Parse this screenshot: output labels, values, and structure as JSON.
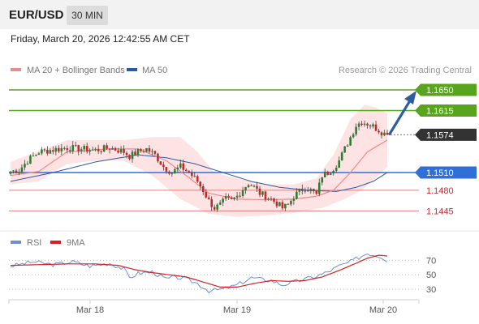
{
  "header": {
    "pair": "EUR/USD",
    "timeframe": "30 MIN",
    "datetime": "Friday, March 20, 2026 12:42:55 AM CET"
  },
  "legend": {
    "ma20": "MA 20 + Bollinger Bands",
    "ma50": "MA 50",
    "credit": "Research © 2026 Trading Central",
    "rsi": "RSI",
    "rsi_ma": "9MA"
  },
  "colors": {
    "ma20": "#f08a8a",
    "bollinger_fill": "#fde3e3",
    "ma50": "#2a5aa0",
    "resistance": "#58a41c",
    "pivot": "#2f6fd6",
    "support": "#e08080",
    "arrow": "#2e5d9e",
    "candle_up": "#2e7d32",
    "candle_down": "#c62828",
    "current": "#333333",
    "rsi": "#6a8fd8",
    "rsi_ma": "#d62020"
  },
  "chart_data": [
    {
      "type": "candlestick",
      "x_ticks": [
        "Mar 18",
        "Mar 19",
        "Mar 20"
      ],
      "ylim": [
        1.1425,
        1.1665
      ],
      "levels": [
        {
          "value": 1.165,
          "label": "1.1650",
          "kind": "resistance"
        },
        {
          "value": 1.1615,
          "label": "1.1615",
          "kind": "resistance"
        },
        {
          "value": 1.1574,
          "label": "1.1574",
          "kind": "current"
        },
        {
          "value": 1.151,
          "label": "1.1510",
          "kind": "pivot"
        },
        {
          "value": 1.148,
          "label": "1.1480",
          "kind": "support"
        },
        {
          "value": 1.1445,
          "label": "1.1445",
          "kind": "support"
        }
      ],
      "candle_anchors": [
        [
          0,
          1.1512
        ],
        [
          3,
          1.1514
        ],
        [
          6,
          1.153
        ],
        [
          10,
          1.1545
        ],
        [
          14,
          1.1548
        ],
        [
          20,
          1.1552
        ],
        [
          25,
          1.155
        ],
        [
          30,
          1.1548
        ],
        [
          35,
          1.1552
        ],
        [
          38,
          1.1548
        ],
        [
          40,
          1.1545
        ],
        [
          42,
          1.1538
        ],
        [
          45,
          1.1545
        ],
        [
          48,
          1.155
        ],
        [
          51,
          1.154
        ],
        [
          54,
          1.152
        ],
        [
          57,
          1.151
        ],
        [
          60,
          1.152
        ],
        [
          63,
          1.151
        ],
        [
          66,
          1.1495
        ],
        [
          68,
          1.148
        ],
        [
          70,
          1.1462
        ],
        [
          72,
          1.145
        ],
        [
          74,
          1.1455
        ],
        [
          76,
          1.1465
        ],
        [
          78,
          1.1462
        ],
        [
          80,
          1.147
        ],
        [
          82,
          1.1482
        ],
        [
          84,
          1.1492
        ],
        [
          86,
          1.1485
        ],
        [
          88,
          1.1475
        ],
        [
          90,
          1.147
        ],
        [
          92,
          1.1465
        ],
        [
          94,
          1.1458
        ],
        [
          96,
          1.145
        ],
        [
          98,
          1.1455
        ],
        [
          100,
          1.147
        ],
        [
          102,
          1.1478
        ],
        [
          104,
          1.1485
        ],
        [
          106,
          1.148
        ],
        [
          108,
          1.1472
        ],
        [
          110,
          1.1505
        ],
        [
          112,
          1.151
        ],
        [
          114,
          1.1518
        ],
        [
          116,
          1.153
        ],
        [
          118,
          1.155
        ],
        [
          120,
          1.157
        ],
        [
          122,
          1.159
        ],
        [
          124,
          1.1596
        ],
        [
          126,
          1.1593
        ],
        [
          128,
          1.1588
        ],
        [
          130,
          1.1582
        ],
        [
          132,
          1.1576
        ],
        [
          133,
          1.1574
        ]
      ],
      "bollinger_upper": [
        [
          0,
          1.1528
        ],
        [
          20,
          1.1565
        ],
        [
          40,
          1.1565
        ],
        [
          50,
          1.157
        ],
        [
          60,
          1.157
        ],
        [
          66,
          1.1545
        ],
        [
          72,
          1.151
        ],
        [
          80,
          1.15
        ],
        [
          90,
          1.149
        ],
        [
          100,
          1.149
        ],
        [
          108,
          1.15
        ],
        [
          114,
          1.154
        ],
        [
          120,
          1.16
        ],
        [
          125,
          1.1625
        ],
        [
          129,
          1.162
        ],
        [
          133,
          1.161
        ]
      ],
      "bollinger_lower": [
        [
          0,
          1.149
        ],
        [
          10,
          1.1495
        ],
        [
          20,
          1.1525
        ],
        [
          30,
          1.153
        ],
        [
          40,
          1.153
        ],
        [
          50,
          1.1505
        ],
        [
          60,
          1.1465
        ],
        [
          70,
          1.144
        ],
        [
          80,
          1.1435
        ],
        [
          90,
          1.1437
        ],
        [
          100,
          1.1442
        ],
        [
          110,
          1.145
        ],
        [
          118,
          1.1465
        ],
        [
          124,
          1.148
        ],
        [
          130,
          1.1505
        ],
        [
          133,
          1.152
        ]
      ],
      "ma20": [
        [
          0,
          1.1505
        ],
        [
          10,
          1.1512
        ],
        [
          20,
          1.1545
        ],
        [
          35,
          1.155
        ],
        [
          45,
          1.155
        ],
        [
          55,
          1.153
        ],
        [
          62,
          1.1505
        ],
        [
          70,
          1.1475
        ],
        [
          80,
          1.1465
        ],
        [
          90,
          1.1464
        ],
        [
          100,
          1.1465
        ],
        [
          108,
          1.147
        ],
        [
          114,
          1.148
        ],
        [
          120,
          1.151
        ],
        [
          126,
          1.1545
        ],
        [
          133,
          1.1565
        ]
      ],
      "ma50": [
        [
          0,
          1.1495
        ],
        [
          15,
          1.151
        ],
        [
          30,
          1.1528
        ],
        [
          45,
          1.154
        ],
        [
          55,
          1.1535
        ],
        [
          65,
          1.1525
        ],
        [
          75,
          1.151
        ],
        [
          85,
          1.1495
        ],
        [
          95,
          1.1485
        ],
        [
          105,
          1.148
        ],
        [
          115,
          1.1478
        ],
        [
          122,
          1.1485
        ],
        [
          128,
          1.1495
        ],
        [
          133,
          1.151
        ]
      ]
    },
    {
      "type": "line",
      "ylim": [
        20,
        85
      ],
      "y_ticks": [
        70,
        50,
        30
      ],
      "series": [
        {
          "name": "RSI",
          "values": [
            [
              0,
              62
            ],
            [
              8,
              68
            ],
            [
              15,
              64
            ],
            [
              22,
              68
            ],
            [
              28,
              62
            ],
            [
              35,
              66
            ],
            [
              40,
              58
            ],
            [
              42,
              46
            ],
            [
              45,
              52
            ],
            [
              50,
              54
            ],
            [
              55,
              44
            ],
            [
              58,
              47
            ],
            [
              62,
              44
            ],
            [
              66,
              38
            ],
            [
              70,
              28
            ],
            [
              75,
              30
            ],
            [
              80,
              36
            ],
            [
              85,
              46
            ],
            [
              88,
              44
            ],
            [
              92,
              42
            ],
            [
              96,
              36
            ],
            [
              100,
              40
            ],
            [
              104,
              44
            ],
            [
              108,
              48
            ],
            [
              112,
              54
            ],
            [
              116,
              62
            ],
            [
              120,
              68
            ],
            [
              124,
              76
            ],
            [
              126,
              80
            ],
            [
              128,
              78
            ],
            [
              131,
              75
            ],
            [
              133,
              70
            ]
          ]
        },
        {
          "name": "9MA",
          "values": [
            [
              0,
              63
            ],
            [
              10,
              64
            ],
            [
              20,
              65
            ],
            [
              30,
              65
            ],
            [
              38,
              63
            ],
            [
              44,
              57
            ],
            [
              50,
              53
            ],
            [
              56,
              50
            ],
            [
              62,
              47
            ],
            [
              68,
              40
            ],
            [
              74,
              33
            ],
            [
              80,
              33
            ],
            [
              86,
              38
            ],
            [
              92,
              42
            ],
            [
              98,
              41
            ],
            [
              104,
              42
            ],
            [
              110,
              47
            ],
            [
              116,
              56
            ],
            [
              122,
              66
            ],
            [
              126,
              73
            ],
            [
              130,
              77
            ],
            [
              133,
              76
            ]
          ]
        }
      ]
    }
  ]
}
